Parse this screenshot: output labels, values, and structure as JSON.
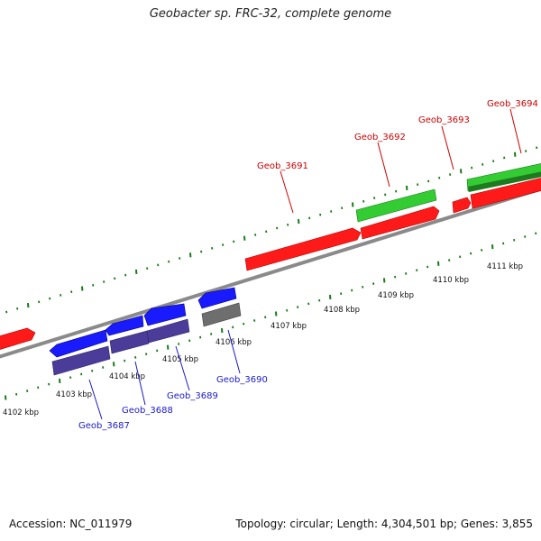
{
  "title": "Geobacter sp. FRC-32, complete genome",
  "footer": {
    "accession": "Accession: NC_011979",
    "summary": "Topology: circular; Length: 4,304,501 bp; Genes: 3,855"
  },
  "colors": {
    "forward_gene": "#ff0000",
    "reverse_gene": "#1a1aff",
    "reverse_cds": "#4b3c99",
    "rna_gene": "#33cc33",
    "rna_dark": "#1e7a1e",
    "pseudo": "#6e6e6e",
    "backbone": "#808080",
    "tick": "#1a7a1a",
    "forward_label": "#cc0000",
    "reverse_label": "#1a1acc"
  },
  "kbp_ticks": [
    "4102 kbp",
    "4103 kbp",
    "4104 kbp",
    "4105 kbp",
    "4106 kbp",
    "4107 kbp",
    "4108 kbp",
    "4109 kbp",
    "4110 kbp",
    "4111 kbp"
  ],
  "gene_labels": {
    "forward": [
      "Geob_3691",
      "Geob_3692",
      "Geob_3693",
      "Geob_3694"
    ],
    "reverse": [
      "Geob_3687",
      "Geob_3688",
      "Geob_3689",
      "Geob_3690"
    ]
  }
}
